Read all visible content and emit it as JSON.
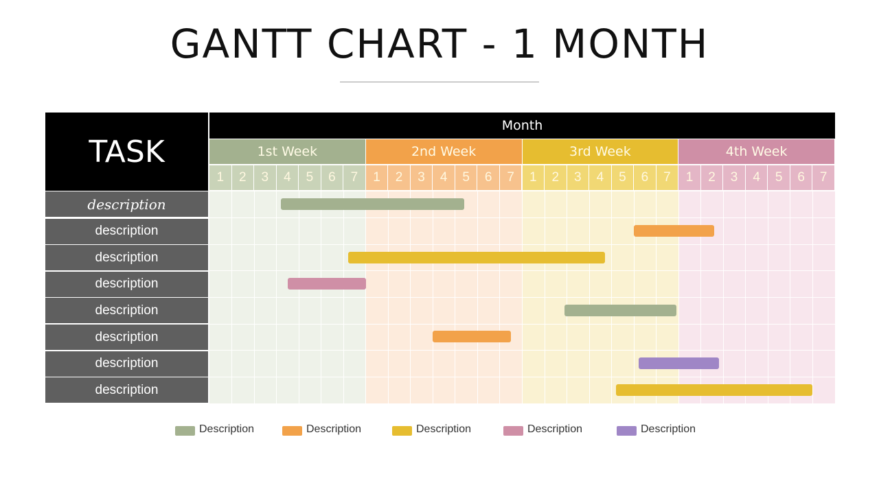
{
  "title": "GANTT CHART - 1 MONTH",
  "task_header": "TASK",
  "month_header": "Month",
  "weeks": [
    {
      "label": "1st Week",
      "header_color": "#a3b18f",
      "day_color": "#c9d3b8",
      "body_color": "#eef2e9"
    },
    {
      "label": "2nd Week",
      "header_color": "#f2a24a",
      "day_color": "#f7c28d",
      "body_color": "#fdebdc"
    },
    {
      "label": "3rd Week",
      "header_color": "#e6bd30",
      "day_color": "#f1d874",
      "body_color": "#faf2d2"
    },
    {
      "label": "4th Week",
      "header_color": "#cf8fa6",
      "day_color": "#e4b6c6",
      "body_color": "#f8e6ed"
    }
  ],
  "day_labels": [
    "1",
    "2",
    "3",
    "4",
    "5",
    "6",
    "7"
  ],
  "tasks": [
    {
      "label": "description",
      "start": 3.2,
      "end": 11.4,
      "color": "#a3b18f"
    },
    {
      "label": "description",
      "start": 19.0,
      "end": 22.6,
      "color": "#f2a24a"
    },
    {
      "label": "description",
      "start": 6.2,
      "end": 17.7,
      "color": "#e6bd30"
    },
    {
      "label": "description",
      "start": 3.5,
      "end": 7.0,
      "color": "#cf8fa6"
    },
    {
      "label": "description",
      "start": 15.9,
      "end": 20.9,
      "color": "#a3b18f"
    },
    {
      "label": "description",
      "start": 10.0,
      "end": 13.5,
      "color": "#f2a24a"
    },
    {
      "label": "description",
      "start": 19.2,
      "end": 22.8,
      "color": "#9f86c6"
    },
    {
      "label": "description",
      "start": 18.2,
      "end": 27.0,
      "color": "#e6bd30"
    }
  ],
  "legend": [
    {
      "label": "Description",
      "color": "#a3b18f"
    },
    {
      "label": "Description",
      "color": "#f2a24a"
    },
    {
      "label": "Description",
      "color": "#e6bd30"
    },
    {
      "label": "Description",
      "color": "#cf8fa6"
    },
    {
      "label": "Description",
      "color": "#9f86c6"
    }
  ]
}
